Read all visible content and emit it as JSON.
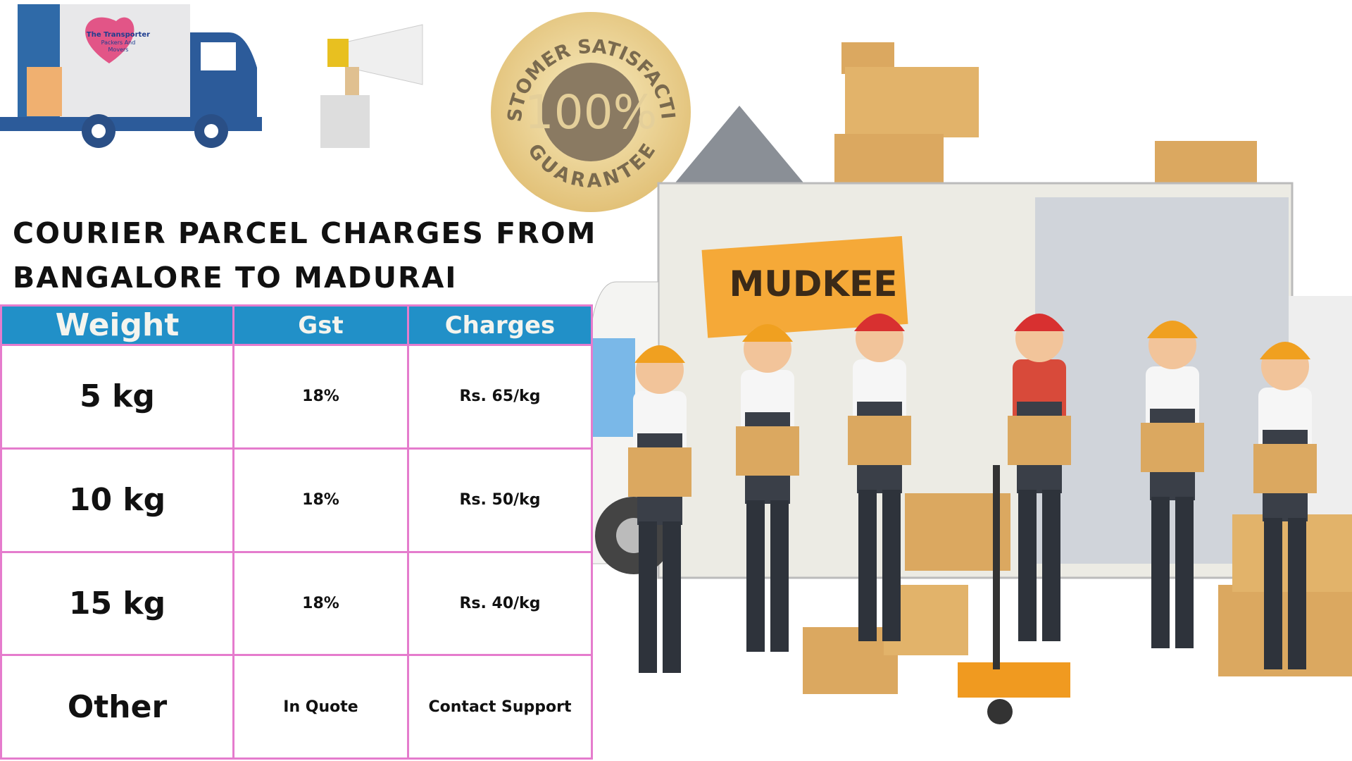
{
  "logo": {
    "lines": [
      "The Transporter",
      "Packers And",
      "Movers"
    ]
  },
  "badge": {
    "top": "CUSTOMER SATISFACTION",
    "center": "100%",
    "bottom": "GUARANTEE"
  },
  "truck_sign": "MUDKEE",
  "title": [
    "COURIER PARCEL CHARGES FROM",
    "BANGALORE TO MADURAI"
  ],
  "table": {
    "header": [
      "Weight",
      "Gst",
      "Charges"
    ],
    "rows": [
      [
        "5 kg",
        "18%",
        "Rs. 65/kg"
      ],
      [
        "10 kg",
        "18%",
        "Rs. 50/kg"
      ],
      [
        "15 kg",
        "18%",
        "Rs. 40/kg"
      ],
      [
        "Other",
        "In Quote",
        "Contact Support"
      ]
    ]
  }
}
